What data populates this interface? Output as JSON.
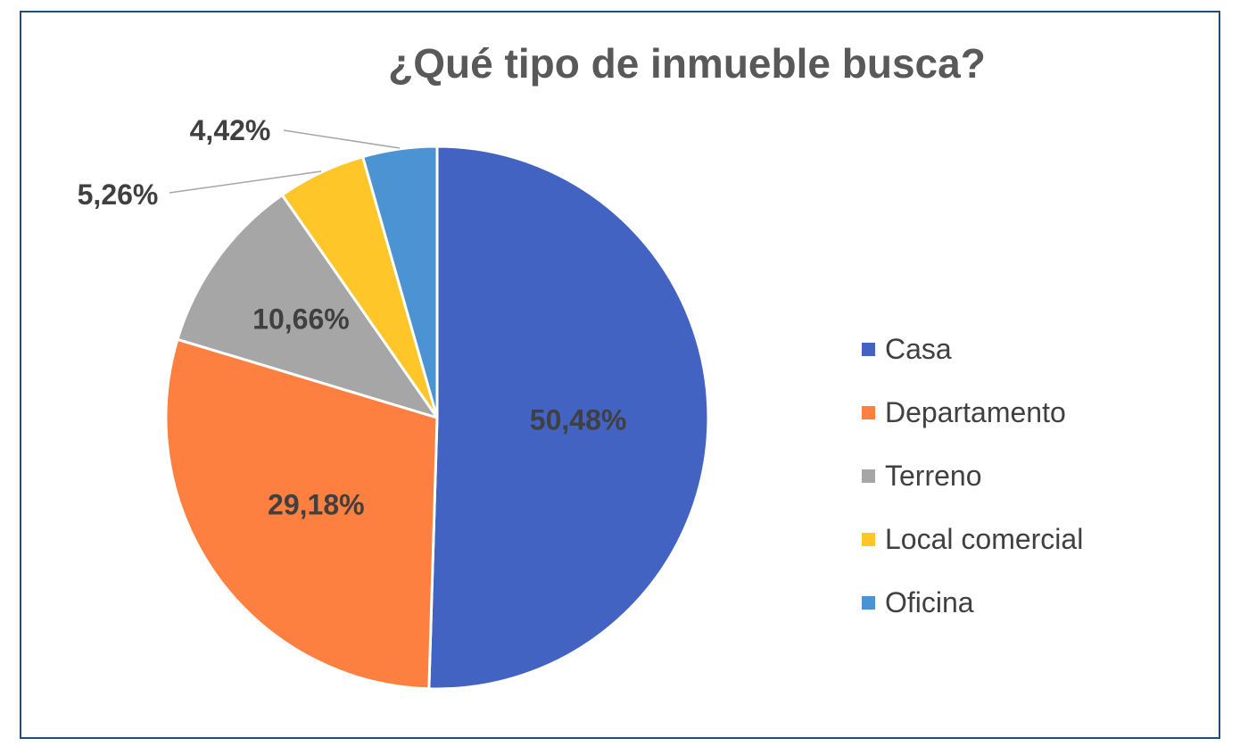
{
  "chart_data": {
    "type": "pie",
    "title": "¿Qué tipo de inmueble busca?",
    "categories": [
      "Casa",
      "Departamento",
      "Terreno",
      "Local comercial",
      "Oficina"
    ],
    "values": [
      50.48,
      29.18,
      10.66,
      5.26,
      4.42
    ],
    "labels": [
      "50,48%",
      "29,18%",
      "10,66%",
      "5,26%",
      "4,42%"
    ],
    "colors": [
      "#4263c2",
      "#fe8040",
      "#a6a6a6",
      "#ffc62a",
      "#4b93d3"
    ],
    "legend_position": "right",
    "start_angle": "12 o'clock",
    "direction": "clockwise"
  }
}
